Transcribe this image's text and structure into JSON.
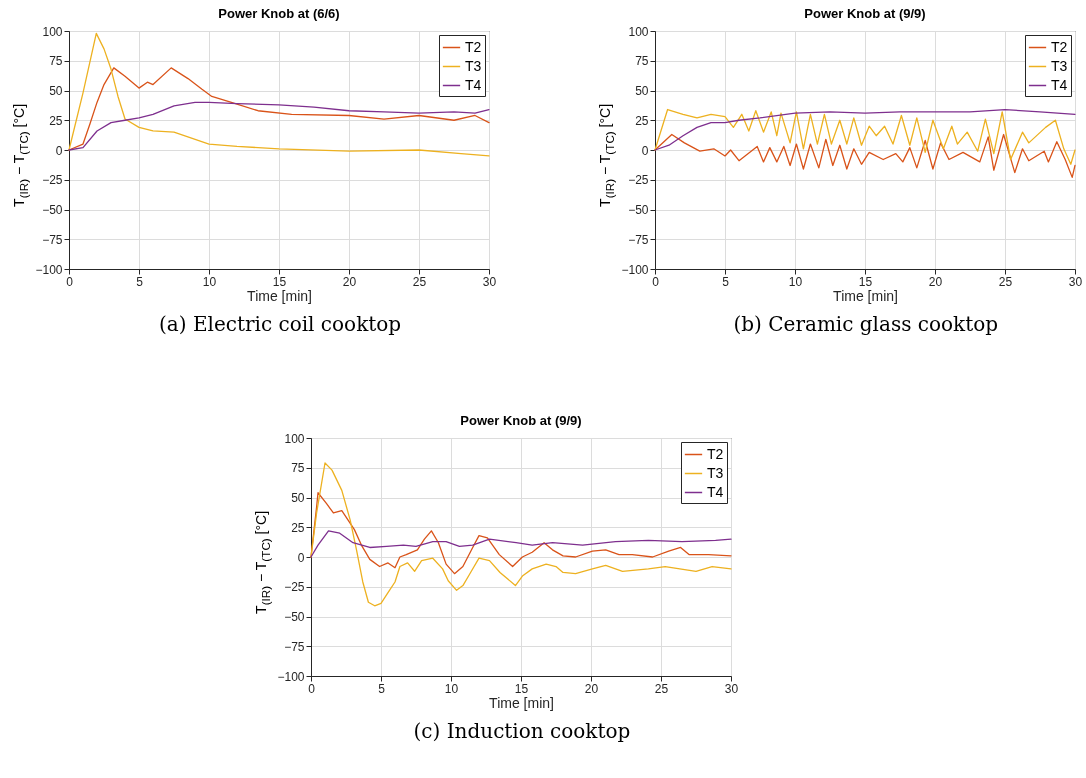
{
  "chart_data": [
    {
      "type": "line",
      "title": "Power Knob at (6/6)",
      "xlabel": "Time [min]",
      "ylabel": "T$_{(IR)}$ − T$_{(TC)}$  [°C]",
      "annotations": [
        "(a) Electric coil cooktop"
      ],
      "xlim": [
        0,
        30
      ],
      "ylim": [
        -100,
        100
      ],
      "xticks": [
        0,
        5,
        10,
        15,
        20,
        25,
        30
      ],
      "yticks": [
        -100,
        -75,
        -50,
        -25,
        0,
        25,
        50,
        75,
        100
      ],
      "grid": true,
      "legend": "top right",
      "series": [
        {
          "name": "T2",
          "color": "#d95319",
          "x": [
            0,
            1,
            1.5,
            2,
            2.5,
            3.2,
            4,
            5,
            5.6,
            6,
            7.3,
            8.5,
            9.5,
            10.2,
            11.6,
            13.5,
            15.9,
            20,
            22.5,
            25,
            27.5,
            29,
            30
          ],
          "values": [
            0,
            5,
            22,
            40,
            55,
            69,
            62,
            52,
            57,
            55,
            69,
            60,
            51,
            45,
            40,
            33,
            30,
            29,
            26,
            29,
            25,
            29,
            23
          ]
        },
        {
          "name": "T3",
          "color": "#edb120",
          "x": [
            0,
            1,
            1.95,
            2.5,
            3,
            3.5,
            4,
            5,
            6,
            7.5,
            10,
            12,
            15,
            20,
            25,
            28,
            30
          ],
          "values": [
            0,
            48,
            98,
            85,
            68,
            45,
            26,
            19,
            16,
            15,
            5,
            3,
            1,
            -1,
            0,
            -3,
            -5
          ]
        },
        {
          "name": "T4",
          "color": "#7e2f8e",
          "x": [
            0,
            1,
            2,
            3,
            4,
            5,
            6,
            7.5,
            9,
            10,
            12,
            15,
            17.5,
            20,
            22.5,
            25,
            27.5,
            29,
            30
          ],
          "values": [
            0,
            2,
            16,
            23,
            25,
            27,
            30,
            37,
            40,
            40,
            39,
            38,
            36,
            33,
            32,
            31,
            32,
            31,
            34
          ]
        }
      ]
    },
    {
      "type": "line",
      "title": "Power Knob at (9/9)",
      "xlabel": "Time [min]",
      "ylabel": "T$_{(IR)}$ − T$_{(TC)}$  [°C]",
      "annotations": [
        "(b) Ceramic glass cooktop"
      ],
      "xlim": [
        0,
        30
      ],
      "ylim": [
        -100,
        100
      ],
      "xticks": [
        0,
        5,
        10,
        15,
        20,
        25,
        30
      ],
      "yticks": [
        -100,
        -75,
        -50,
        -25,
        0,
        25,
        50,
        75,
        100
      ],
      "grid": true,
      "legend": "top right",
      "series": [
        {
          "name": "T2",
          "color": "#d95319",
          "x": [
            0,
            1.2,
            2.1,
            3.2,
            4.2,
            5,
            5.4,
            6,
            7.3,
            7.75,
            8.2,
            8.7,
            9.2,
            9.65,
            10.1,
            10.6,
            11.1,
            11.7,
            12.2,
            12.7,
            13.2,
            13.7,
            14.2,
            14.75,
            15.3,
            16.3,
            17.2,
            17.7,
            18.2,
            18.7,
            19.3,
            19.85,
            20.4,
            21,
            22,
            23.2,
            23.8,
            24.2,
            24.9,
            25.7,
            26.25,
            26.7,
            27.8,
            28.1,
            28.7,
            29.3,
            29.8,
            30
          ],
          "values": [
            0,
            13,
            6,
            -1,
            1,
            -5,
            0,
            -9,
            3,
            -10,
            2,
            -10,
            3,
            -13,
            5,
            -16,
            5,
            -15,
            9,
            -13,
            4,
            -16,
            1,
            -12,
            -2,
            -8,
            -3,
            -10,
            2,
            -15,
            8,
            -16,
            6,
            -8,
            -2,
            -10,
            11,
            -17,
            13,
            -19,
            1,
            -9,
            -1,
            -10,
            7,
            -8,
            -23,
            -13
          ]
        },
        {
          "name": "T3",
          "color": "#edb120",
          "x": [
            0,
            0.9,
            2,
            3,
            4,
            5,
            5.6,
            6.2,
            6.7,
            7.2,
            7.75,
            8.3,
            8.7,
            9,
            9.65,
            10.1,
            10.6,
            11.1,
            11.6,
            12.1,
            12.6,
            13.2,
            13.7,
            14.2,
            14.75,
            15.3,
            15.8,
            16.4,
            17,
            17.6,
            18.2,
            18.7,
            19.3,
            19.85,
            20.6,
            21.2,
            21.6,
            22.3,
            23.05,
            23.6,
            24.2,
            24.8,
            25.4,
            26.25,
            26.7,
            27.9,
            28.6,
            29.2,
            29.7,
            30
          ],
          "values": [
            0,
            34,
            30,
            27,
            30,
            28,
            19,
            30,
            16,
            33,
            15,
            32,
            12,
            31,
            6,
            32,
            1,
            30,
            5,
            30,
            5,
            25,
            5,
            27,
            4,
            20,
            12,
            20,
            5,
            29,
            4,
            27,
            -2,
            25,
            1,
            20,
            5,
            15,
            -1,
            26,
            -3,
            32,
            -8,
            15,
            6,
            19,
            25,
            1,
            -12,
            0
          ]
        },
        {
          "name": "T4",
          "color": "#7e2f8e",
          "x": [
            0,
            1,
            2,
            3,
            4,
            5,
            6,
            7.5,
            10,
            12.5,
            15,
            17.5,
            20,
            22.5,
            25,
            27.5,
            30
          ],
          "values": [
            0,
            4,
            12,
            19,
            23,
            23,
            25,
            27,
            31,
            32,
            31,
            32,
            32,
            32,
            34,
            32,
            30
          ]
        }
      ]
    },
    {
      "type": "line",
      "title": "Power Knob at (9/9)",
      "xlabel": "Time [min]",
      "ylabel": "T$_{(IR)}$ − T$_{(TC)}$  [°C]",
      "annotations": [
        "(c) Induction cooktop"
      ],
      "xlim": [
        0,
        30
      ],
      "ylim": [
        -100,
        100
      ],
      "xticks": [
        0,
        5,
        10,
        15,
        20,
        25,
        30
      ],
      "yticks": [
        -100,
        -75,
        -50,
        -25,
        0,
        25,
        50,
        75,
        100
      ],
      "grid": true,
      "legend": "top right",
      "series": [
        {
          "name": "T2",
          "color": "#d95319",
          "x": [
            0,
            0.4,
            0.5,
            1.1,
            1.6,
            2.2,
            2.65,
            3.1,
            3.6,
            4.2,
            4.9,
            5.5,
            6,
            6.35,
            6.8,
            7.6,
            8.1,
            8.6,
            9.1,
            9.65,
            10.25,
            10.85,
            11.55,
            12,
            12.6,
            13.45,
            14.4,
            15.1,
            15.8,
            16.65,
            17.25,
            18,
            18.9,
            20.1,
            21.05,
            22,
            22.95,
            24.4,
            25.55,
            26.4,
            27,
            28.4,
            30
          ],
          "values": [
            0,
            42,
            54,
            45,
            37,
            39,
            31,
            23,
            10,
            -2,
            -8,
            -5,
            -9,
            0,
            2,
            6,
            15,
            22,
            12,
            -6,
            -14,
            -8,
            8,
            18,
            16,
            2,
            -8,
            0,
            4,
            12,
            6,
            1,
            0,
            5,
            6,
            2,
            2,
            0,
            5,
            8,
            2,
            2,
            1
          ]
        },
        {
          "name": "T3",
          "color": "#edb120",
          "x": [
            0,
            0.4,
            1,
            1.5,
            2.2,
            2.8,
            3.25,
            3.7,
            4.1,
            4.55,
            5,
            5.5,
            6,
            6.35,
            6.9,
            7.4,
            7.9,
            8.7,
            9.4,
            9.8,
            10.4,
            10.85,
            11.4,
            12,
            12.75,
            13.5,
            14.6,
            15.1,
            15.8,
            16.8,
            17.5,
            18,
            18.9,
            20.1,
            21.05,
            22.25,
            24.1,
            25.3,
            27.5,
            28.65,
            30
          ],
          "values": [
            0,
            37,
            79,
            73,
            56,
            31,
            6,
            -21,
            -38,
            -41,
            -39,
            -30,
            -21,
            -8,
            -5,
            -12,
            -3,
            -1,
            -10,
            -20,
            -28,
            -24,
            -13,
            -1,
            -3,
            -13,
            -24,
            -16,
            -10,
            -6,
            -8,
            -13,
            -14,
            -10,
            -7,
            -12,
            -10,
            -8,
            -12,
            -8,
            -10
          ]
        },
        {
          "name": "T4",
          "color": "#7e2f8e",
          "x": [
            0,
            0.5,
            1.25,
            2.05,
            3,
            4.2,
            5.4,
            6.6,
            7.5,
            8.7,
            9.65,
            10.6,
            11.55,
            12.75,
            14.65,
            15.8,
            17.25,
            19.4,
            21.75,
            24.1,
            26.5,
            28.9,
            30
          ],
          "values": [
            0,
            10,
            22,
            20,
            12,
            8,
            9,
            10,
            9,
            13,
            13,
            9,
            10,
            15,
            12,
            10,
            12,
            10,
            13,
            14,
            13,
            14,
            15
          ]
        }
      ]
    }
  ]
}
